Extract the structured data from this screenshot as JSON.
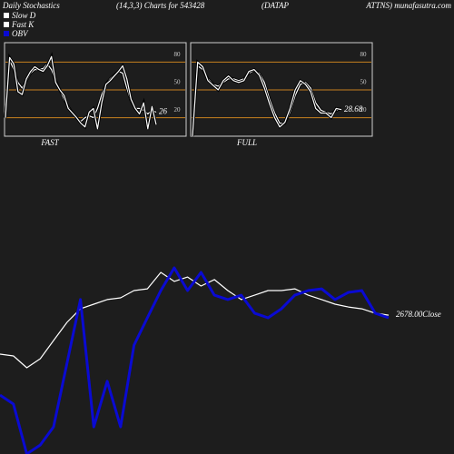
{
  "header": {
    "title": "Daily Stochastics",
    "params": "(14,3,3) Charts for 543428",
    "symbol_a": "(DATAP",
    "symbol_b": "ATTNS) munafasutra.com"
  },
  "chart_data": [
    {
      "type": "line",
      "title": "FAST",
      "ylim": [
        0,
        100
      ],
      "yticks": [
        20,
        50,
        80
      ],
      "grid": true,
      "grid_color": "#c8801e",
      "series": [
        {
          "name": "Slow D",
          "color": "#ffffff",
          "values": [
            20,
            82,
            72,
            58,
            52,
            60,
            68,
            72,
            72,
            73,
            78,
            72,
            60,
            50,
            40,
            32,
            25,
            20,
            16,
            20,
            22,
            20,
            30,
            45,
            56,
            62,
            66,
            70,
            68,
            52,
            38,
            30,
            30,
            28,
            24,
            28,
            26
          ]
        },
        {
          "name": "Fast K",
          "color": "#ffffff",
          "values": [
            20,
            85,
            78,
            48,
            45,
            62,
            70,
            75,
            72,
            70,
            76,
            86,
            58,
            50,
            44,
            30,
            25,
            20,
            14,
            10,
            26,
            30,
            8,
            36,
            56,
            60,
            65,
            70,
            76,
            62,
            40,
            30,
            24,
            36,
            8,
            32,
            12.5
          ]
        }
      ]
    },
    {
      "type": "line",
      "title": "FULL",
      "ylim": [
        0,
        100
      ],
      "yticks": [
        20,
        50,
        80
      ],
      "grid": true,
      "grid_color": "#c8801e",
      "series": [
        {
          "color": "#ffffff",
          "values": [
            0,
            76,
            72,
            62,
            56,
            54,
            58,
            62,
            62,
            60,
            62,
            68,
            71,
            68,
            58,
            40,
            25,
            14,
            14,
            26,
            44,
            56,
            58,
            52,
            36,
            28,
            26,
            24,
            28,
            30
          ]
        },
        {
          "color": "#ffffff",
          "values": [
            0,
            80,
            75,
            60,
            55,
            50,
            60,
            65,
            60,
            58,
            60,
            70,
            72,
            66,
            52,
            35,
            20,
            10,
            15,
            30,
            50,
            60,
            56,
            48,
            30,
            25,
            25,
            20,
            30,
            28.68
          ]
        }
      ]
    },
    {
      "type": "line",
      "ylim": [
        0,
        100
      ],
      "annotation": "2678.00Close",
      "series": [
        {
          "color": "#ffffff",
          "values": [
            50,
            49.1,
            43.2,
            47.7,
            56.8,
            65.9,
            72.7,
            75,
            77.3,
            78.2,
            81.8,
            82.7,
            90.9,
            86.4,
            88.6,
            84.1,
            87.3,
            81.8,
            77.3,
            79.5,
            81.8,
            81.8,
            82.7,
            79.5,
            77.3,
            75,
            73.6,
            72.7,
            70.5,
            69.5
          ]
        },
        {
          "name": "OBV",
          "color": "#0a0ad2",
          "values": [
            29.5,
            25,
            0,
            4.5,
            13.6,
            45.5,
            77.3,
            13.6,
            36.4,
            13.6,
            54.5,
            68.2,
            81.8,
            93.2,
            81.8,
            90.9,
            79.5,
            77.3,
            79.5,
            70.5,
            68.2,
            72.7,
            79.5,
            81.8,
            82.7,
            77.3,
            80.9,
            81.8,
            70.5,
            68.2
          ]
        }
      ]
    }
  ]
}
